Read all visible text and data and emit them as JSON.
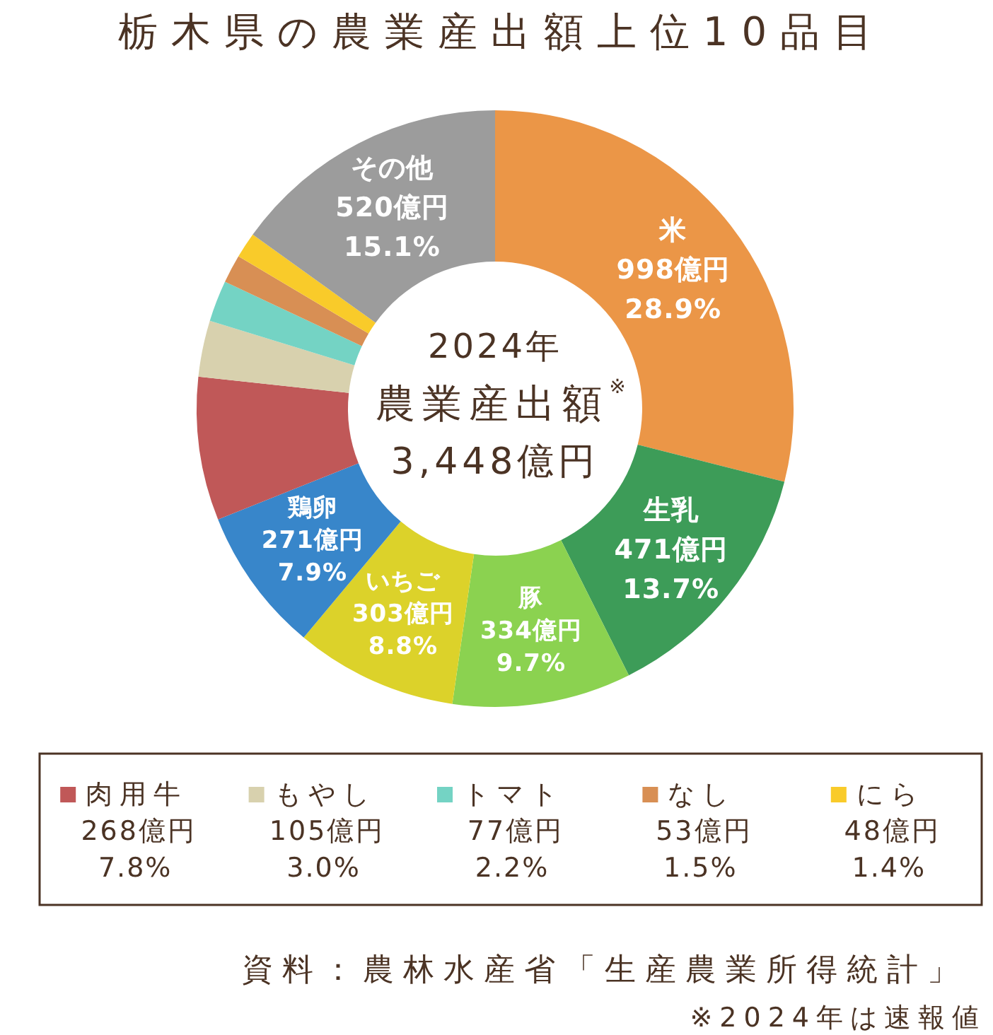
{
  "chart_data": {
    "type": "donut",
    "title": "栃木県の農業産出額上位10品目",
    "categories": [
      "米",
      "生乳",
      "豚",
      "いちご",
      "鶏卵",
      "肉用牛",
      "もやし",
      "トマト",
      "なし",
      "にら",
      "その他"
    ],
    "values": [
      998,
      471,
      334,
      303,
      271,
      268,
      105,
      77,
      53,
      48,
      520
    ],
    "colors": [
      "#eb9647",
      "#3d9c58",
      "#8bd250",
      "#dcd22a",
      "#3886ca",
      "#c05858",
      "#d8d1ae",
      "#74d3c4",
      "#d88f54",
      "#f9cb2a",
      "#9c9c9c"
    ],
    "value_labels": [
      "998億円\n28.9%",
      "471億円\n13.7%",
      "334億円\n9.7%",
      "303億円\n8.8%",
      "271億円\n7.9%",
      "268億円\n7.8%",
      "105億円\n3.0%",
      "77億円\n2.2%",
      "53億円\n1.5%",
      "48億円\n1.4%",
      "520億円\n15.1%"
    ],
    "legend": "bottom",
    "annotations": [
      "2024年",
      "農業産出額$^{※}$",
      "3,448億円",
      "資料：農林水産省「生産農業所得統計」",
      "※2024年は速報値"
    ]
  }
}
